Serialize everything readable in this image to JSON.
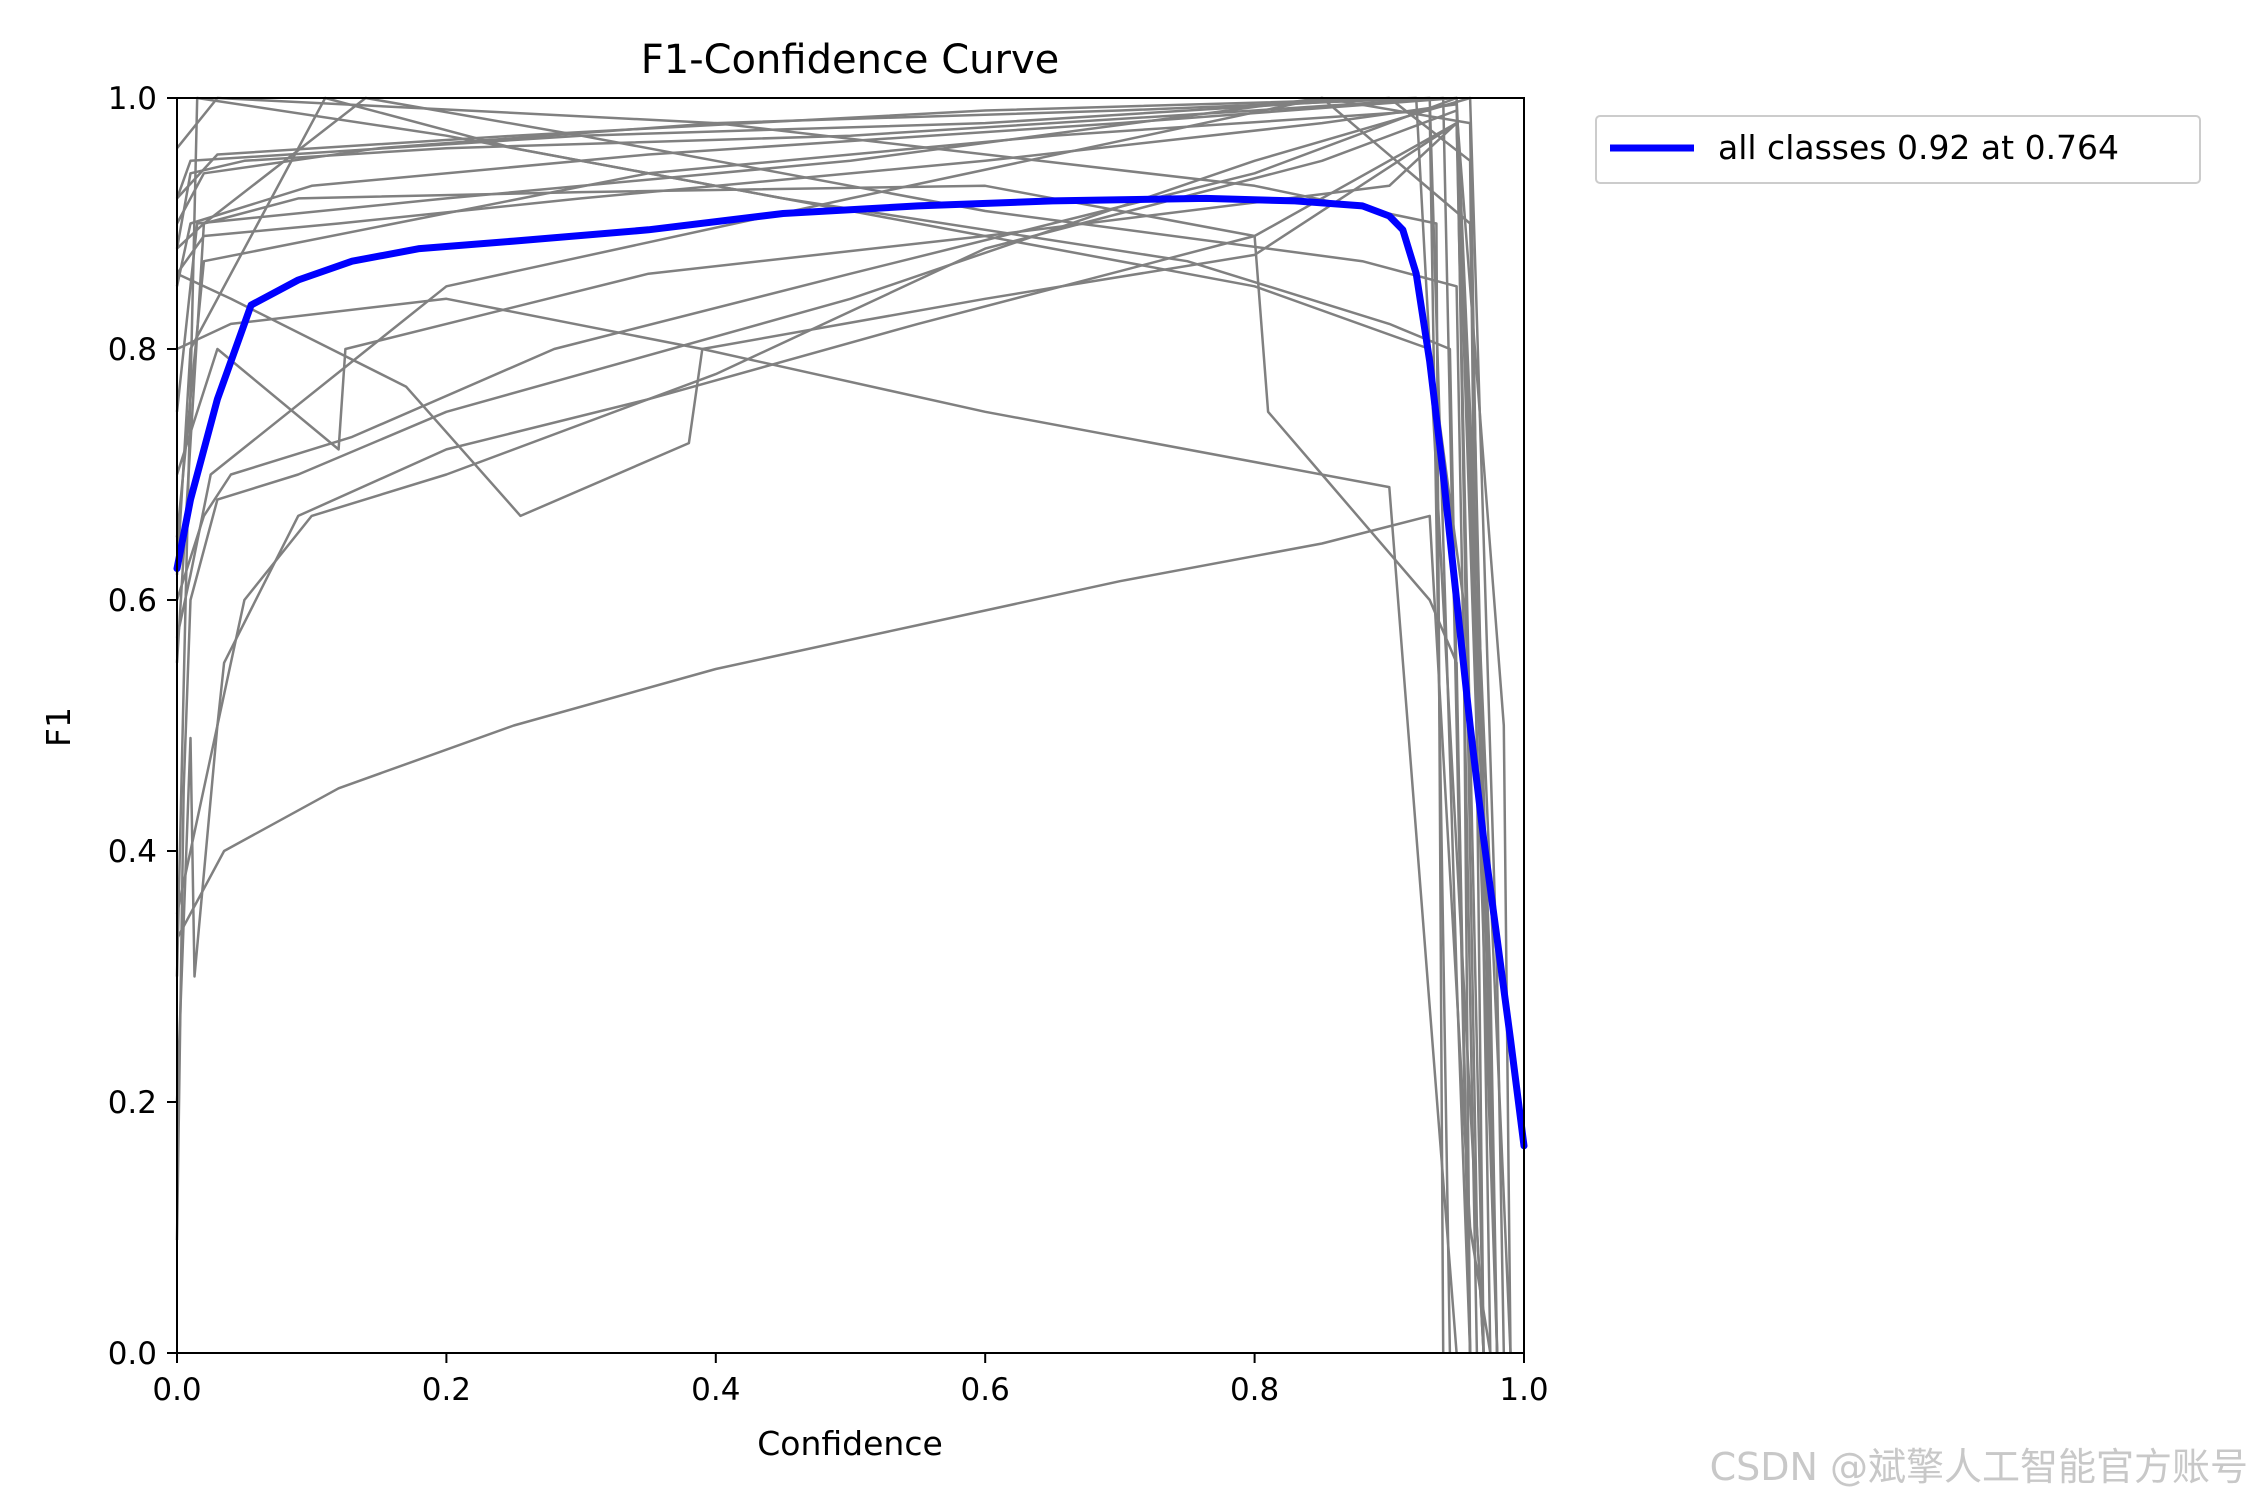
{
  "chart_data": {
    "type": "line",
    "title": "F1-Confidence Curve",
    "xlabel": "Confidence",
    "ylabel": "F1",
    "xlim": [
      0,
      1
    ],
    "ylim": [
      0,
      1
    ],
    "xticks": [
      "0.0",
      "0.2",
      "0.4",
      "0.6",
      "0.8",
      "1.0"
    ],
    "yticks": [
      "0.0",
      "0.2",
      "0.4",
      "0.6",
      "0.8",
      "1.0"
    ],
    "grid": false,
    "legend_position": "outside-top-right",
    "series": [
      {
        "name": "all classes 0.92 at 0.764",
        "color": "#0000ff",
        "x": [
          0.0,
          0.01,
          0.03,
          0.055,
          0.09,
          0.13,
          0.18,
          0.25,
          0.35,
          0.45,
          0.55,
          0.65,
          0.764,
          0.83,
          0.88,
          0.9,
          0.91,
          0.92,
          0.93,
          0.94,
          0.95,
          0.96,
          0.97,
          0.98,
          0.99,
          1.0
        ],
        "y": [
          0.625,
          0.68,
          0.76,
          0.835,
          0.855,
          0.87,
          0.88,
          0.886,
          0.895,
          0.908,
          0.914,
          0.918,
          0.92,
          0.918,
          0.914,
          0.906,
          0.895,
          0.86,
          0.79,
          0.7,
          0.6,
          0.5,
          0.41,
          0.33,
          0.25,
          0.165
        ]
      }
    ],
    "class_curves": [
      {
        "x": [
          0.0,
          0.01,
          0.05,
          0.2,
          0.5,
          0.8,
          0.94,
          0.95,
          0.96
        ],
        "y": [
          0.88,
          0.94,
          0.95,
          0.96,
          0.97,
          0.99,
          1.0,
          0.5,
          0.0
        ]
      },
      {
        "x": [
          0.0,
          0.02,
          0.15,
          0.4,
          0.7,
          0.93,
          0.95,
          0.96
        ],
        "y": [
          0.9,
          0.94,
          0.96,
          0.98,
          0.99,
          1.0,
          0.3,
          0.0
        ]
      },
      {
        "x": [
          0.0,
          0.03,
          0.25,
          0.6,
          0.92,
          0.96,
          0.97
        ],
        "y": [
          0.92,
          0.955,
          0.97,
          0.99,
          1.0,
          0.2,
          0.0
        ]
      },
      {
        "x": [
          0.0,
          0.01,
          0.1,
          0.35,
          0.7,
          0.95,
          0.965,
          0.97
        ],
        "y": [
          0.85,
          0.9,
          0.93,
          0.955,
          0.98,
          1.0,
          0.1,
          0.0
        ]
      },
      {
        "x": [
          0.0,
          0.02,
          0.12,
          0.3,
          0.6,
          0.85,
          0.95,
          0.975,
          0.98
        ],
        "y": [
          0.86,
          0.89,
          0.9,
          0.92,
          0.95,
          0.98,
          0.995,
          0.3,
          0.0
        ]
      },
      {
        "x": [
          0.0,
          0.005,
          0.01,
          0.03,
          0.09,
          0.2,
          0.5,
          0.8,
          0.96,
          0.98,
          0.985
        ],
        "y": [
          0.09,
          0.45,
          0.6,
          0.68,
          0.7,
          0.75,
          0.84,
          0.95,
          1.0,
          0.3,
          0.0
        ]
      },
      {
        "x": [
          0.0,
          0.01,
          0.013,
          0.03,
          0.05,
          0.1,
          0.2,
          0.4,
          0.6,
          0.85,
          0.95,
          0.985,
          0.99
        ],
        "y": [
          0.2,
          0.49,
          0.3,
          0.5,
          0.6,
          0.667,
          0.7,
          0.78,
          0.88,
          0.95,
          0.99,
          0.5,
          0.0
        ]
      },
      {
        "x": [
          0.0,
          0.035,
          0.12,
          0.25,
          0.4,
          0.55,
          0.7,
          0.85,
          0.93,
          0.96,
          0.975
        ],
        "y": [
          0.33,
          0.4,
          0.45,
          0.5,
          0.545,
          0.58,
          0.615,
          0.645,
          0.667,
          0.1,
          0.0
        ]
      },
      {
        "x": [
          0.0,
          0.03,
          0.035,
          0.09,
          0.2,
          0.35,
          0.55,
          0.8,
          0.95,
          0.97
        ],
        "y": [
          0.35,
          0.5,
          0.55,
          0.667,
          0.72,
          0.76,
          0.82,
          0.89,
          0.98,
          0.0
        ]
      },
      {
        "x": [
          0.0,
          0.02,
          0.04,
          0.13,
          0.28,
          0.5,
          0.8,
          0.95,
          0.99
        ],
        "y": [
          0.6,
          0.667,
          0.7,
          0.73,
          0.8,
          0.86,
          0.94,
          1.0,
          0.0
        ]
      },
      {
        "x": [
          0.0,
          0.03,
          0.12,
          0.125,
          0.35,
          0.6,
          0.9,
          0.95,
          0.97,
          0.98
        ],
        "y": [
          0.7,
          0.8,
          0.72,
          0.8,
          0.86,
          0.89,
          0.93,
          0.98,
          0.4,
          0.0
        ]
      },
      {
        "x": [
          0.0,
          0.04,
          0.17,
          0.255,
          0.38,
          0.39,
          0.6,
          0.8,
          0.95,
          0.98
        ],
        "y": [
          0.86,
          0.84,
          0.77,
          0.667,
          0.725,
          0.8,
          0.84,
          0.875,
          0.98,
          0.0
        ]
      },
      {
        "x": [
          0.0,
          0.04,
          0.2,
          0.39,
          0.6,
          0.9,
          0.95
        ],
        "y": [
          0.8,
          0.82,
          0.84,
          0.8,
          0.75,
          0.69,
          0.0
        ]
      },
      {
        "x": [
          0.0,
          0.02,
          0.09,
          0.3,
          0.6,
          0.8,
          0.81,
          0.85,
          0.93,
          0.95,
          0.96
        ],
        "y": [
          0.88,
          0.9,
          0.92,
          0.925,
          0.93,
          0.89,
          0.75,
          0.7,
          0.6,
          0.55,
          0.0
        ]
      },
      {
        "x": [
          0.0,
          0.01,
          0.11,
          0.25,
          0.55,
          0.8,
          0.93,
          0.955,
          0.96
        ],
        "y": [
          0.62,
          0.8,
          1.0,
          0.96,
          0.9,
          0.85,
          0.8,
          0.6,
          0.0
        ]
      },
      {
        "x": [
          0.0,
          0.02,
          0.14,
          0.3,
          0.6,
          0.88,
          0.95,
          0.965
        ],
        "y": [
          0.55,
          0.9,
          1.0,
          0.97,
          0.91,
          0.87,
          0.85,
          0.0
        ]
      },
      {
        "x": [
          0.0,
          0.015,
          0.2,
          0.45,
          0.75,
          0.9,
          0.945,
          0.96
        ],
        "y": [
          0.3,
          1.0,
          0.97,
          0.92,
          0.87,
          0.82,
          0.8,
          0.0
        ]
      },
      {
        "x": [
          0.0,
          0.03,
          0.4,
          0.8,
          0.935,
          0.94
        ],
        "y": [
          0.96,
          1.0,
          0.98,
          0.93,
          0.9,
          0.0
        ]
      },
      {
        "x": [
          0.0,
          0.01,
          0.3,
          0.6,
          0.9,
          0.96,
          0.97
        ],
        "y": [
          0.92,
          0.95,
          0.97,
          0.98,
          1.0,
          0.95,
          0.0
        ]
      },
      {
        "x": [
          0.0,
          0.015,
          0.2,
          0.5,
          0.85,
          0.96,
          0.98
        ],
        "y": [
          0.75,
          0.9,
          0.92,
          0.95,
          1.0,
          0.9,
          0.0
        ]
      },
      {
        "x": [
          0.0,
          0.01,
          0.025,
          0.2,
          0.5,
          0.85,
          0.96,
          0.975
        ],
        "y": [
          0.57,
          0.62,
          0.7,
          0.85,
          0.92,
          1.0,
          0.98,
          0.0
        ]
      },
      {
        "x": [
          0.0,
          0.02,
          0.35,
          0.65,
          0.93,
          0.945
        ],
        "y": [
          0.65,
          0.87,
          0.94,
          0.97,
          0.99,
          0.0
        ]
      }
    ]
  },
  "legend": {
    "entries": [
      "all classes 0.92 at 0.764"
    ]
  },
  "watermark": "CSDN @斌擎人工智能官方账号",
  "colors": {
    "class_curve": "#808080",
    "all_classes": "#0000ff",
    "axis": "#000000"
  }
}
